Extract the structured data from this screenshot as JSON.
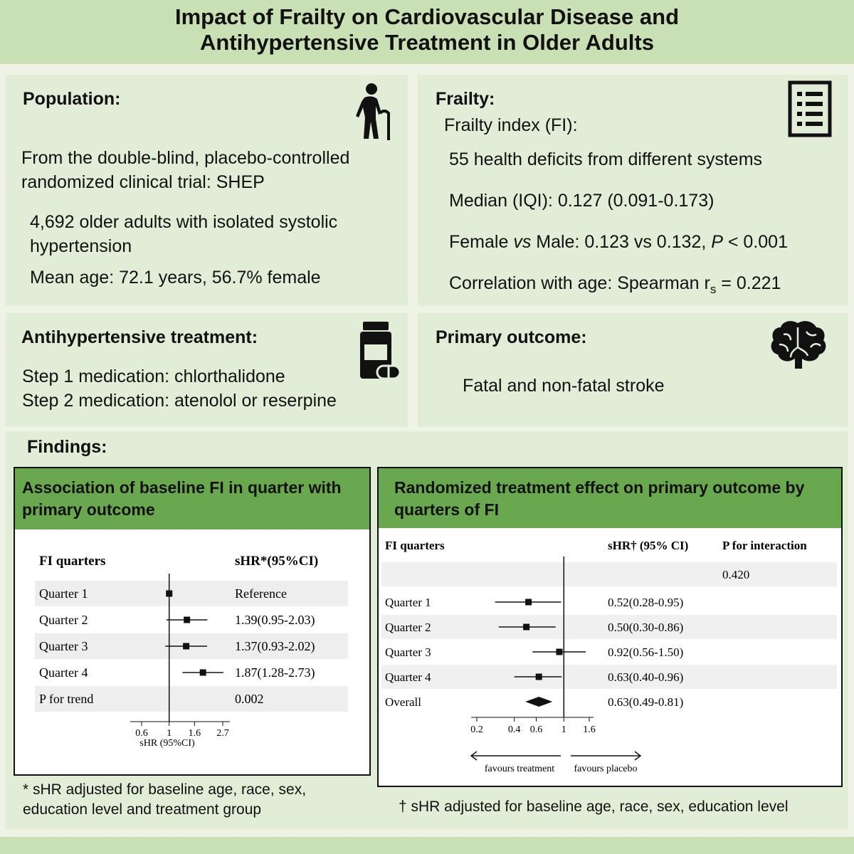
{
  "title": {
    "line1": "Impact of Frailty on Cardiovascular Disease and",
    "line2": "Antihypertensive Treatment in Older Adults"
  },
  "population": {
    "heading": "Population:",
    "line1": "From the double-blind, placebo-controlled",
    "line2": "randomized clinical trial: SHEP",
    "line3": "4,692 older adults with isolated systolic",
    "line4": "hypertension",
    "line5": "Mean age: 72.1 years, 56.7% female",
    "icon": "elderly-person-with-cane-icon"
  },
  "frailty": {
    "heading": "Frailty:",
    "line1": "Frailty index (FI):",
    "line2": "55 health deficits from different systems",
    "line3": "Median (IQI): 0.127 (0.091-0.173)",
    "line4_a": "Female ",
    "line4_vs": "vs",
    "line4_b": " Male: 0.123 vs 0.132, ",
    "line4_p": "P",
    "line4_c": " < 0.001",
    "line5_a": "Correlation with age: Spearman r",
    "line5_sub": "s",
    "line5_b": " = 0.221",
    "icon": "checklist-icon"
  },
  "treatment": {
    "heading": "Antihypertensive treatment:",
    "line1": "Step 1 medication: chlorthalidone",
    "line2": "Step 2 medication: atenolol or reserpine",
    "icon": "pill-bottle-icon"
  },
  "outcome": {
    "heading": "Primary outcome:",
    "line1": "Fatal and non-fatal stroke",
    "icon": "brain-icon"
  },
  "findings": {
    "heading": "Findings:",
    "left": {
      "header": "Association of baseline FI in quarter with primary outcome",
      "col1": "FI quarters",
      "col2": "sHR*(95%CI)",
      "axis_label": "sHR (95%CI)",
      "ticks": [
        "0.6",
        "1",
        "1.6",
        "2.7"
      ],
      "footnote": "* sHR adjusted for baseline age, race, sex, education level and treatment group"
    },
    "right": {
      "header": "Randomized treatment effect on primary outcome by quarters of FI",
      "col1": "FI quarters",
      "col2": "sHR† (95% CI)",
      "col3": "P for interaction",
      "p_interaction": "0.420",
      "ticks": [
        "0.2",
        "0.4",
        "0.6",
        "1",
        "1.6"
      ],
      "favours_left": "favours treatment",
      "favours_right": "favours placebo",
      "footnote": "† sHR adjusted for baseline age, race, sex, education level"
    }
  },
  "chart_data": [
    {
      "type": "forest",
      "rows": [
        {
          "label": "Quarter 1",
          "hr": 1.0,
          "lo": 1.0,
          "hi": 1.0,
          "text": "Reference"
        },
        {
          "label": "Quarter 2",
          "hr": 1.39,
          "lo": 0.95,
          "hi": 2.03,
          "text": "1.39(0.95-2.03)"
        },
        {
          "label": "Quarter 3",
          "hr": 1.37,
          "lo": 0.93,
          "hi": 2.02,
          "text": "1.37(0.93-2.02)"
        },
        {
          "label": "Quarter 4",
          "hr": 1.87,
          "lo": 1.28,
          "hi": 2.73,
          "text": "1.87(1.28-2.73)"
        },
        {
          "label": "P for trend",
          "text": "0.002"
        }
      ],
      "xscale": "log",
      "xlim": [
        0.6,
        2.7
      ],
      "ref": 1
    },
    {
      "type": "forest",
      "rows": [
        {
          "label": "Quarter 1",
          "hr": 0.52,
          "lo": 0.28,
          "hi": 0.95,
          "text": "0.52(0.28-0.95)"
        },
        {
          "label": "Quarter 2",
          "hr": 0.5,
          "lo": 0.3,
          "hi": 0.86,
          "text": "0.50(0.30-0.86)"
        },
        {
          "label": "Quarter 3",
          "hr": 0.92,
          "lo": 0.56,
          "hi": 1.5,
          "text": "0.92(0.56-1.50)"
        },
        {
          "label": "Quarter 4",
          "hr": 0.63,
          "lo": 0.4,
          "hi": 0.96,
          "text": "0.63(0.40-0.96)"
        },
        {
          "label": "Overall",
          "hr": 0.63,
          "lo": 0.49,
          "hi": 0.81,
          "text": "0.63(0.49-0.81)",
          "diamond": true
        }
      ],
      "xscale": "log",
      "xlim": [
        0.2,
        1.6
      ],
      "ref": 1
    }
  ]
}
